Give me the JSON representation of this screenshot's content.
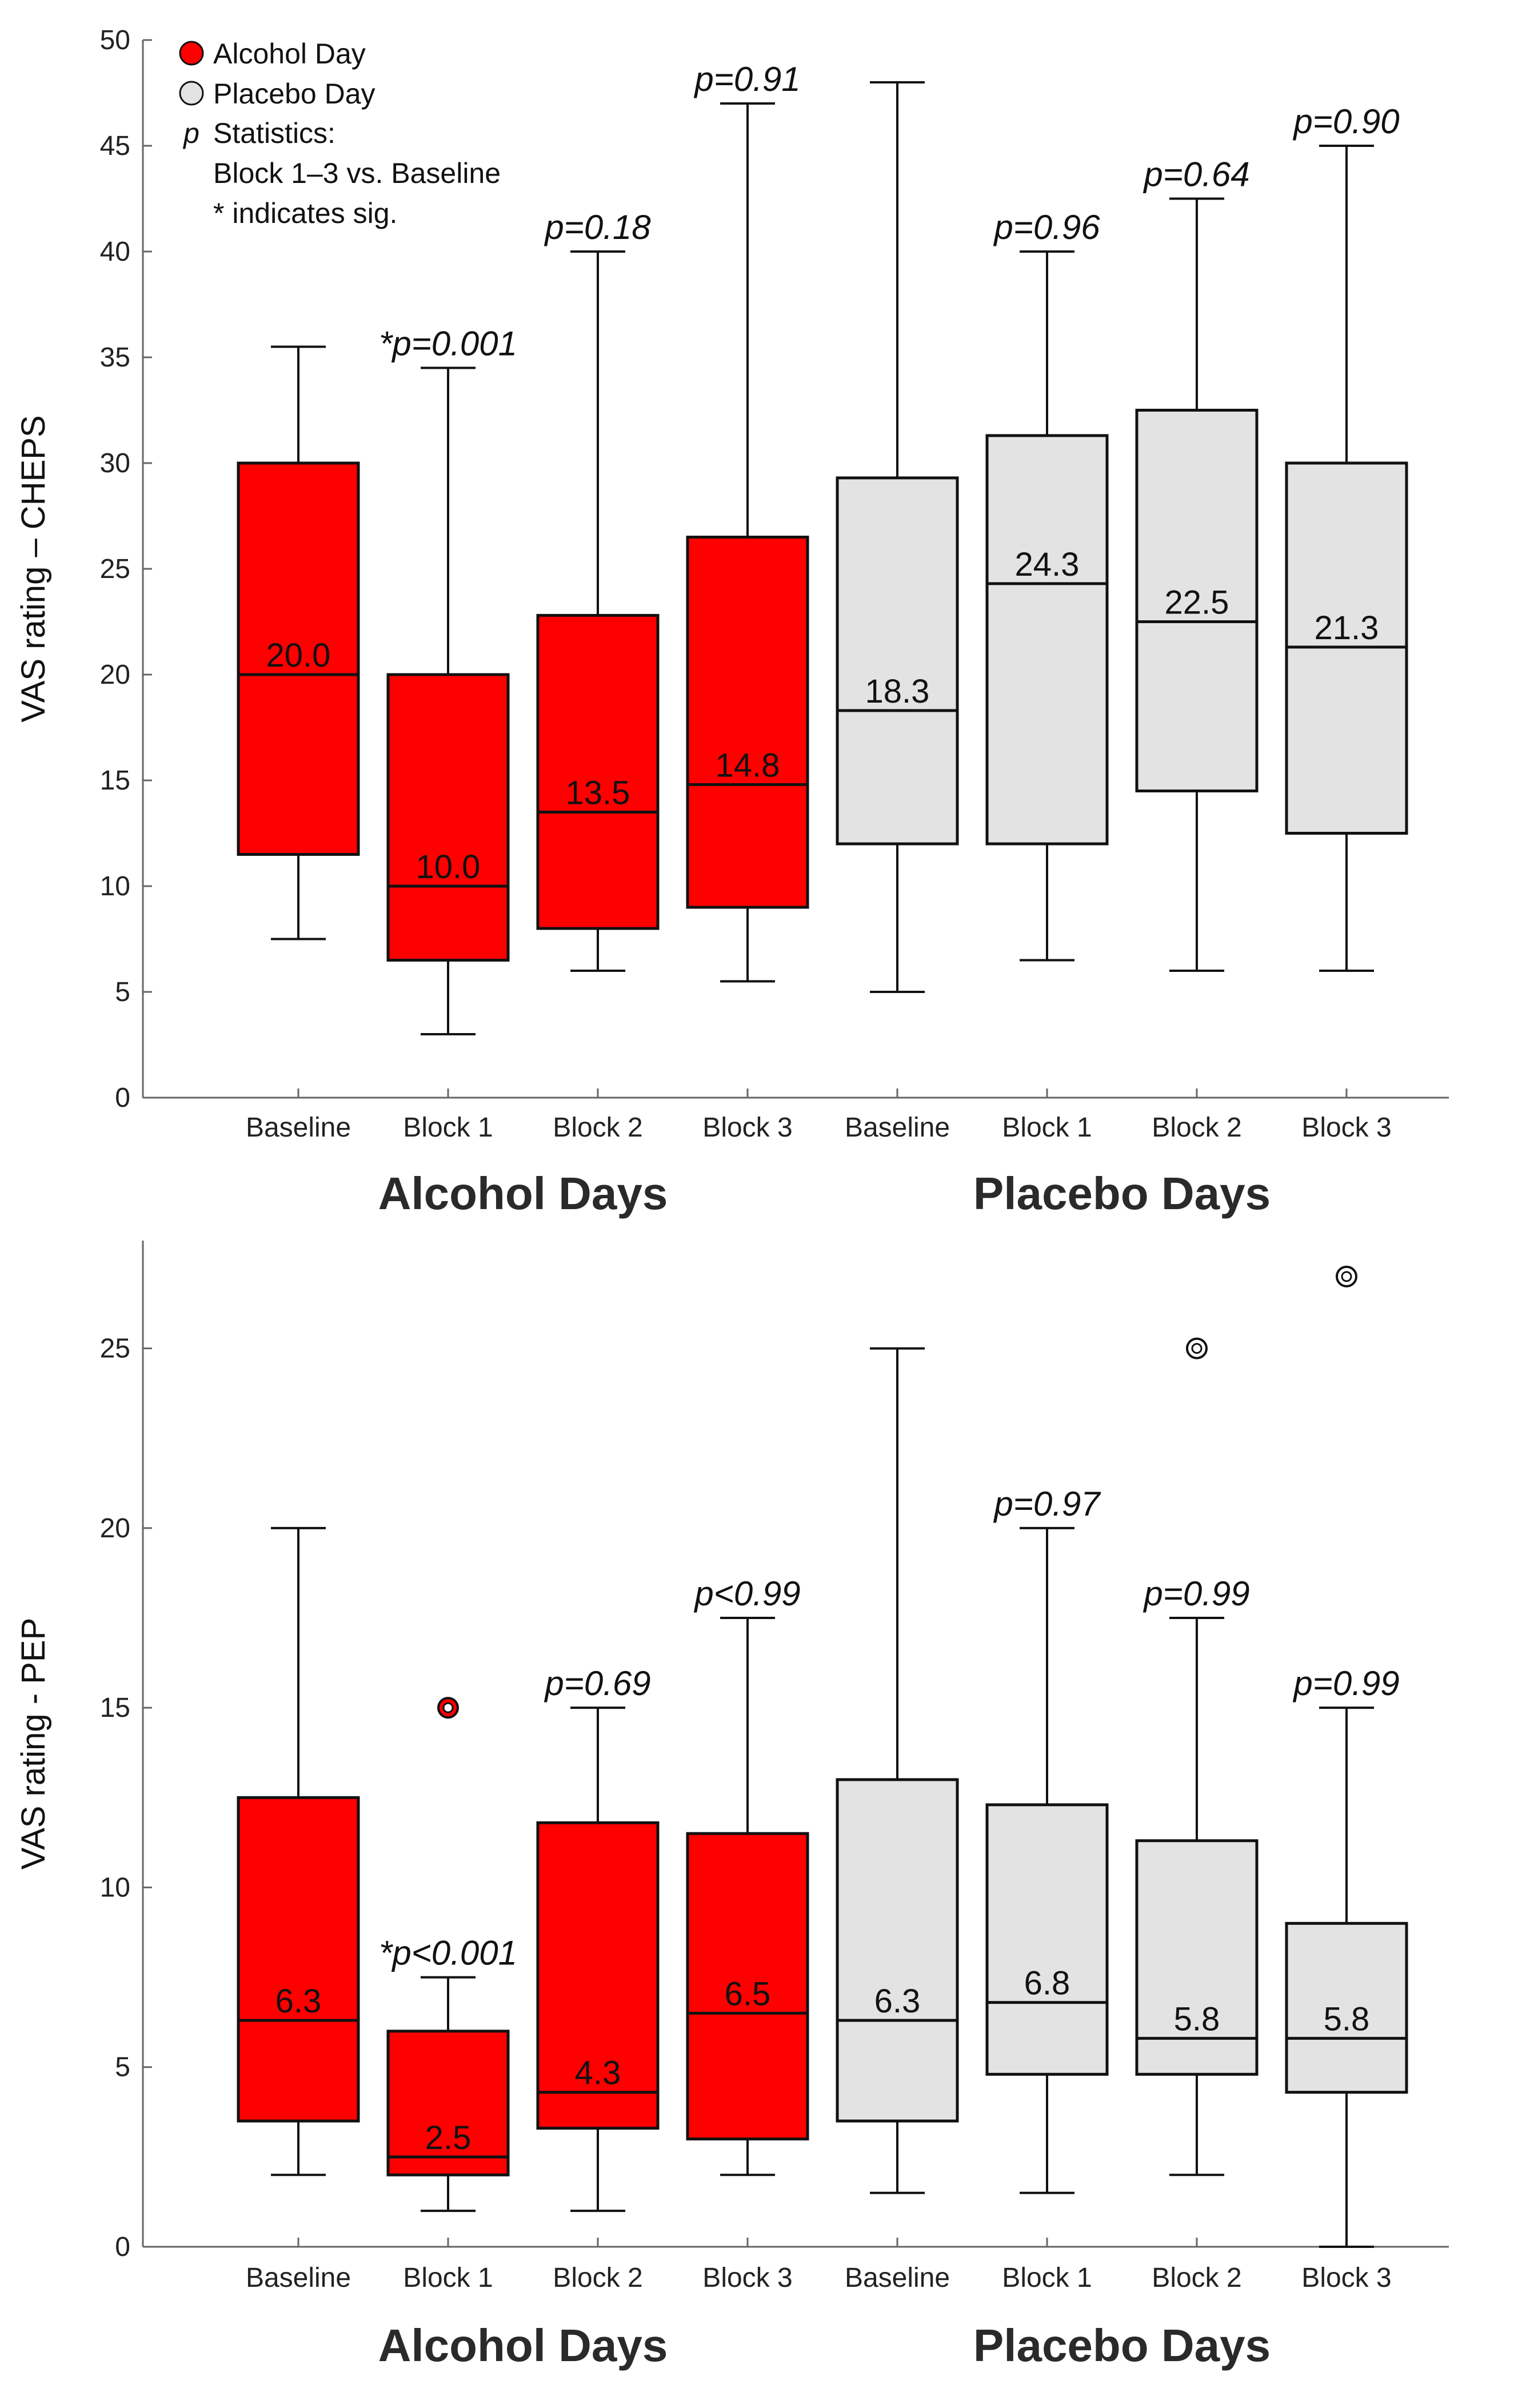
{
  "chart_data": [
    {
      "type": "boxplot",
      "ylabel": "VAS rating – CHEPS",
      "ylim": [
        0,
        50
      ],
      "yticks": [
        0,
        5,
        10,
        15,
        20,
        25,
        30,
        35,
        40,
        45,
        50
      ],
      "categories": [
        "Baseline",
        "Block 1",
        "Block 2",
        "Block 3",
        "Baseline",
        "Block 1",
        "Block 2",
        "Block 3"
      ],
      "group_labels": [
        "Alcohol Days",
        "Placebo Days"
      ],
      "legend": {
        "items": [
          {
            "label": "Alcohol Day",
            "color": "#ff0000"
          },
          {
            "label": "Placebo Day",
            "color": "#e3e3e3"
          }
        ],
        "p_symbol": "p",
        "stat_lines": [
          "Statistics:",
          "Block 1–3 vs. Baseline",
          "* indicates sig."
        ]
      },
      "series": [
        {
          "group": "Alcohol Day",
          "color": "#ff0000",
          "min": 7.5,
          "q1": 11.5,
          "median": 20.0,
          "q3": 30.0,
          "max": 35.5,
          "median_label": "20.0",
          "pvalue": "",
          "outliers": []
        },
        {
          "group": "Alcohol Day",
          "color": "#ff0000",
          "min": 3.0,
          "q1": 6.5,
          "median": 10.0,
          "q3": 20.0,
          "max": 34.5,
          "median_label": "10.0",
          "pvalue": "*p=0.001",
          "outliers": []
        },
        {
          "group": "Alcohol Day",
          "color": "#ff0000",
          "min": 6.0,
          "q1": 8.0,
          "median": 13.5,
          "q3": 22.8,
          "max": 40.0,
          "median_label": "13.5",
          "pvalue": "p=0.18",
          "outliers": []
        },
        {
          "group": "Alcohol Day",
          "color": "#ff0000",
          "min": 5.5,
          "q1": 9.0,
          "median": 14.8,
          "q3": 26.5,
          "max": 47.0,
          "median_label": "14.8",
          "pvalue": "p=0.91",
          "outliers": []
        },
        {
          "group": "Placebo Day",
          "color": "#e3e3e3",
          "min": 5.0,
          "q1": 12.0,
          "median": 18.3,
          "q3": 29.3,
          "max": 48.0,
          "median_label": "18.3",
          "pvalue": "",
          "outliers": []
        },
        {
          "group": "Placebo Day",
          "color": "#e3e3e3",
          "min": 6.5,
          "q1": 12.0,
          "median": 24.3,
          "q3": 31.3,
          "max": 40.0,
          "median_label": "24.3",
          "pvalue": "p=0.96",
          "outliers": []
        },
        {
          "group": "Placebo Day",
          "color": "#e3e3e3",
          "min": 6.0,
          "q1": 14.5,
          "median": 22.5,
          "q3": 32.5,
          "max": 42.5,
          "median_label": "22.5",
          "pvalue": "p=0.64",
          "outliers": []
        },
        {
          "group": "Placebo Day",
          "color": "#e3e3e3",
          "min": 6.0,
          "q1": 12.5,
          "median": 21.3,
          "q3": 30.0,
          "max": 45.0,
          "median_label": "21.3",
          "pvalue": "p=0.90",
          "outliers": []
        }
      ]
    },
    {
      "type": "boxplot",
      "ylabel": "VAS rating - PEP",
      "ylim": [
        0,
        28
      ],
      "yticks": [
        0,
        5,
        10,
        15,
        20,
        25
      ],
      "categories": [
        "Baseline",
        "Block 1",
        "Block 2",
        "Block 3",
        "Baseline",
        "Block 1",
        "Block 2",
        "Block 3"
      ],
      "group_labels": [
        "Alcohol Days",
        "Placebo Days"
      ],
      "series": [
        {
          "group": "Alcohol Day",
          "color": "#ff0000",
          "min": 2.0,
          "q1": 3.5,
          "median": 6.3,
          "q3": 12.5,
          "max": 20.0,
          "median_label": "6.3",
          "pvalue": "",
          "outliers": []
        },
        {
          "group": "Alcohol Day",
          "color": "#ff0000",
          "min": 1.0,
          "q1": 2.0,
          "median": 2.5,
          "q3": 6.0,
          "max": 7.5,
          "median_label": "2.5",
          "pvalue": "*p<0.001",
          "outliers": [
            15
          ]
        },
        {
          "group": "Alcohol Day",
          "color": "#ff0000",
          "min": 1.0,
          "q1": 3.3,
          "median": 4.3,
          "q3": 11.8,
          "max": 15.0,
          "median_label": "4.3",
          "pvalue": "p=0.69",
          "outliers": []
        },
        {
          "group": "Alcohol Day",
          "color": "#ff0000",
          "min": 2.0,
          "q1": 3.0,
          "median": 6.5,
          "q3": 11.5,
          "max": 17.5,
          "median_label": "6.5",
          "pvalue": "p<0.99",
          "outliers": []
        },
        {
          "group": "Placebo Day",
          "color": "#e3e3e3",
          "min": 1.5,
          "q1": 3.5,
          "median": 6.3,
          "q3": 13.0,
          "max": 25.0,
          "median_label": "6.3",
          "pvalue": "",
          "outliers": []
        },
        {
          "group": "Placebo Day",
          "color": "#e3e3e3",
          "min": 1.5,
          "q1": 4.8,
          "median": 6.8,
          "q3": 12.3,
          "max": 20.0,
          "median_label": "6.8",
          "pvalue": "p=0.97",
          "outliers": []
        },
        {
          "group": "Placebo Day",
          "color": "#e3e3e3",
          "min": 2.0,
          "q1": 4.8,
          "median": 5.8,
          "q3": 11.3,
          "max": 17.5,
          "median_label": "5.8",
          "pvalue": "p=0.99",
          "outliers": [
            25
          ]
        },
        {
          "group": "Placebo Day",
          "color": "#e3e3e3",
          "min": 0.0,
          "q1": 4.3,
          "median": 5.8,
          "q3": 9.0,
          "max": 15.0,
          "median_label": "5.8",
          "pvalue": "p=0.99",
          "outliers": [
            27
          ]
        }
      ]
    }
  ]
}
